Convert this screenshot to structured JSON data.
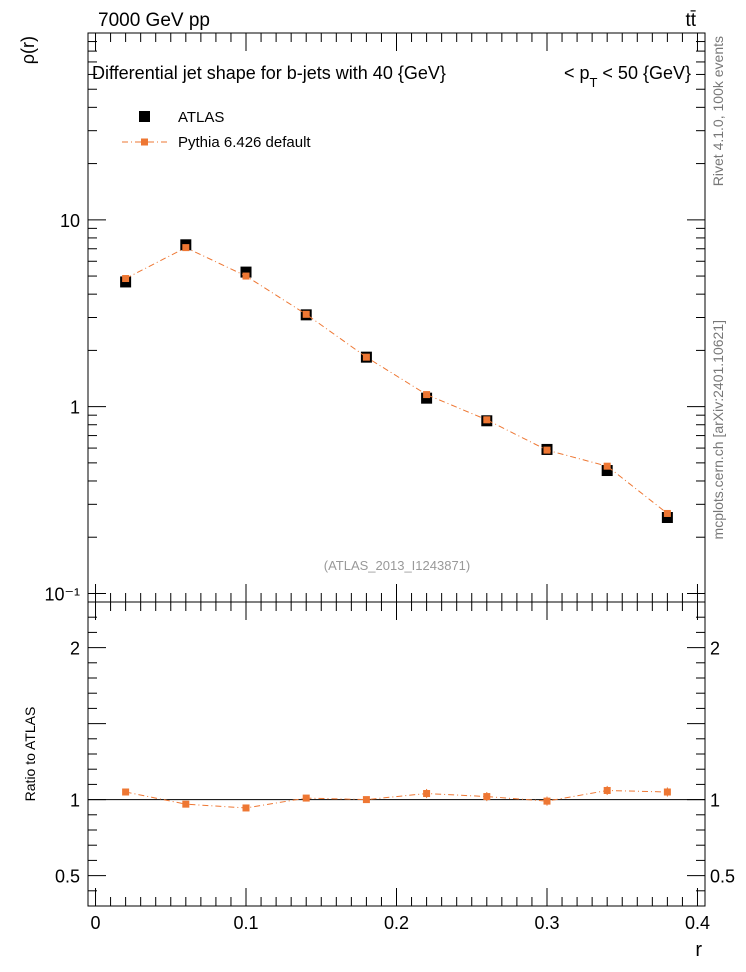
{
  "header": {
    "energy_label": "7000 GeV pp",
    "process_label": "tt̄"
  },
  "side_text": {
    "rivet": "Rivet 4.1.0,  100k events",
    "mcplots": "mcplots.cern.ch [arXiv:2401.10621]"
  },
  "colors": {
    "data": "#000000",
    "mc": "#ee7733",
    "watermark": "#999999",
    "side_text": "#777777"
  },
  "chart_data": {
    "type": "scatter",
    "title": "Differential jet shape for b-jets with 40 {GeV}",
    "title_right": {
      "prefix": "< p",
      "sub": "T",
      "suffix": " < 50 {GeV}"
    },
    "watermark": "(ATLAS_2013_I1243871)",
    "xlabel": "r",
    "ylabel": "ρ(r)",
    "ratio_ylabel": "Ratio to ATLAS",
    "xlim": [
      -0.005,
      0.405
    ],
    "ylim": [
      0.09,
      100
    ],
    "yscale": "log",
    "ratio_ylim": [
      0.3,
      2.3
    ],
    "x_ticks": [
      0,
      0.1,
      0.2,
      0.3,
      0.4
    ],
    "x_tick_labels": [
      "0",
      "0.1",
      "0.2",
      "0.3",
      "0.4"
    ],
    "y_tick_labels": [
      "10⁻¹",
      "1",
      "10"
    ],
    "ratio_ticks": [
      0.5,
      1,
      2
    ],
    "ratio_tick_labels": [
      "0.5",
      "1",
      "2"
    ],
    "legend": {
      "position": "top-left",
      "entries": [
        "ATLAS",
        "Pythia 6.426 default"
      ]
    },
    "x": [
      0.02,
      0.06,
      0.1,
      0.14,
      0.18,
      0.22,
      0.26,
      0.3,
      0.34,
      0.38
    ],
    "series": [
      {
        "name": "ATLAS",
        "values": [
          4.65,
          7.35,
          5.25,
          3.1,
          1.84,
          1.11,
          0.84,
          0.59,
          0.455,
          0.255
        ],
        "errors": [
          0.12,
          0.2,
          0.15,
          0.08,
          0.05,
          0.04,
          0.03,
          0.02,
          0.02,
          0.01
        ]
      },
      {
        "name": "Pythia 6.426 default",
        "values": [
          4.85,
          7.1,
          5.0,
          3.12,
          1.84,
          1.16,
          0.85,
          0.585,
          0.48,
          0.268
        ]
      }
    ],
    "ratio": {
      "values": [
        1.05,
        0.97,
        0.945,
        1.01,
        1.0,
        1.04,
        1.02,
        0.99,
        1.06,
        1.05
      ],
      "errors": [
        0.02,
        0.02,
        0.02,
        0.02,
        0.02,
        0.03,
        0.03,
        0.03,
        0.03,
        0.03
      ]
    }
  }
}
